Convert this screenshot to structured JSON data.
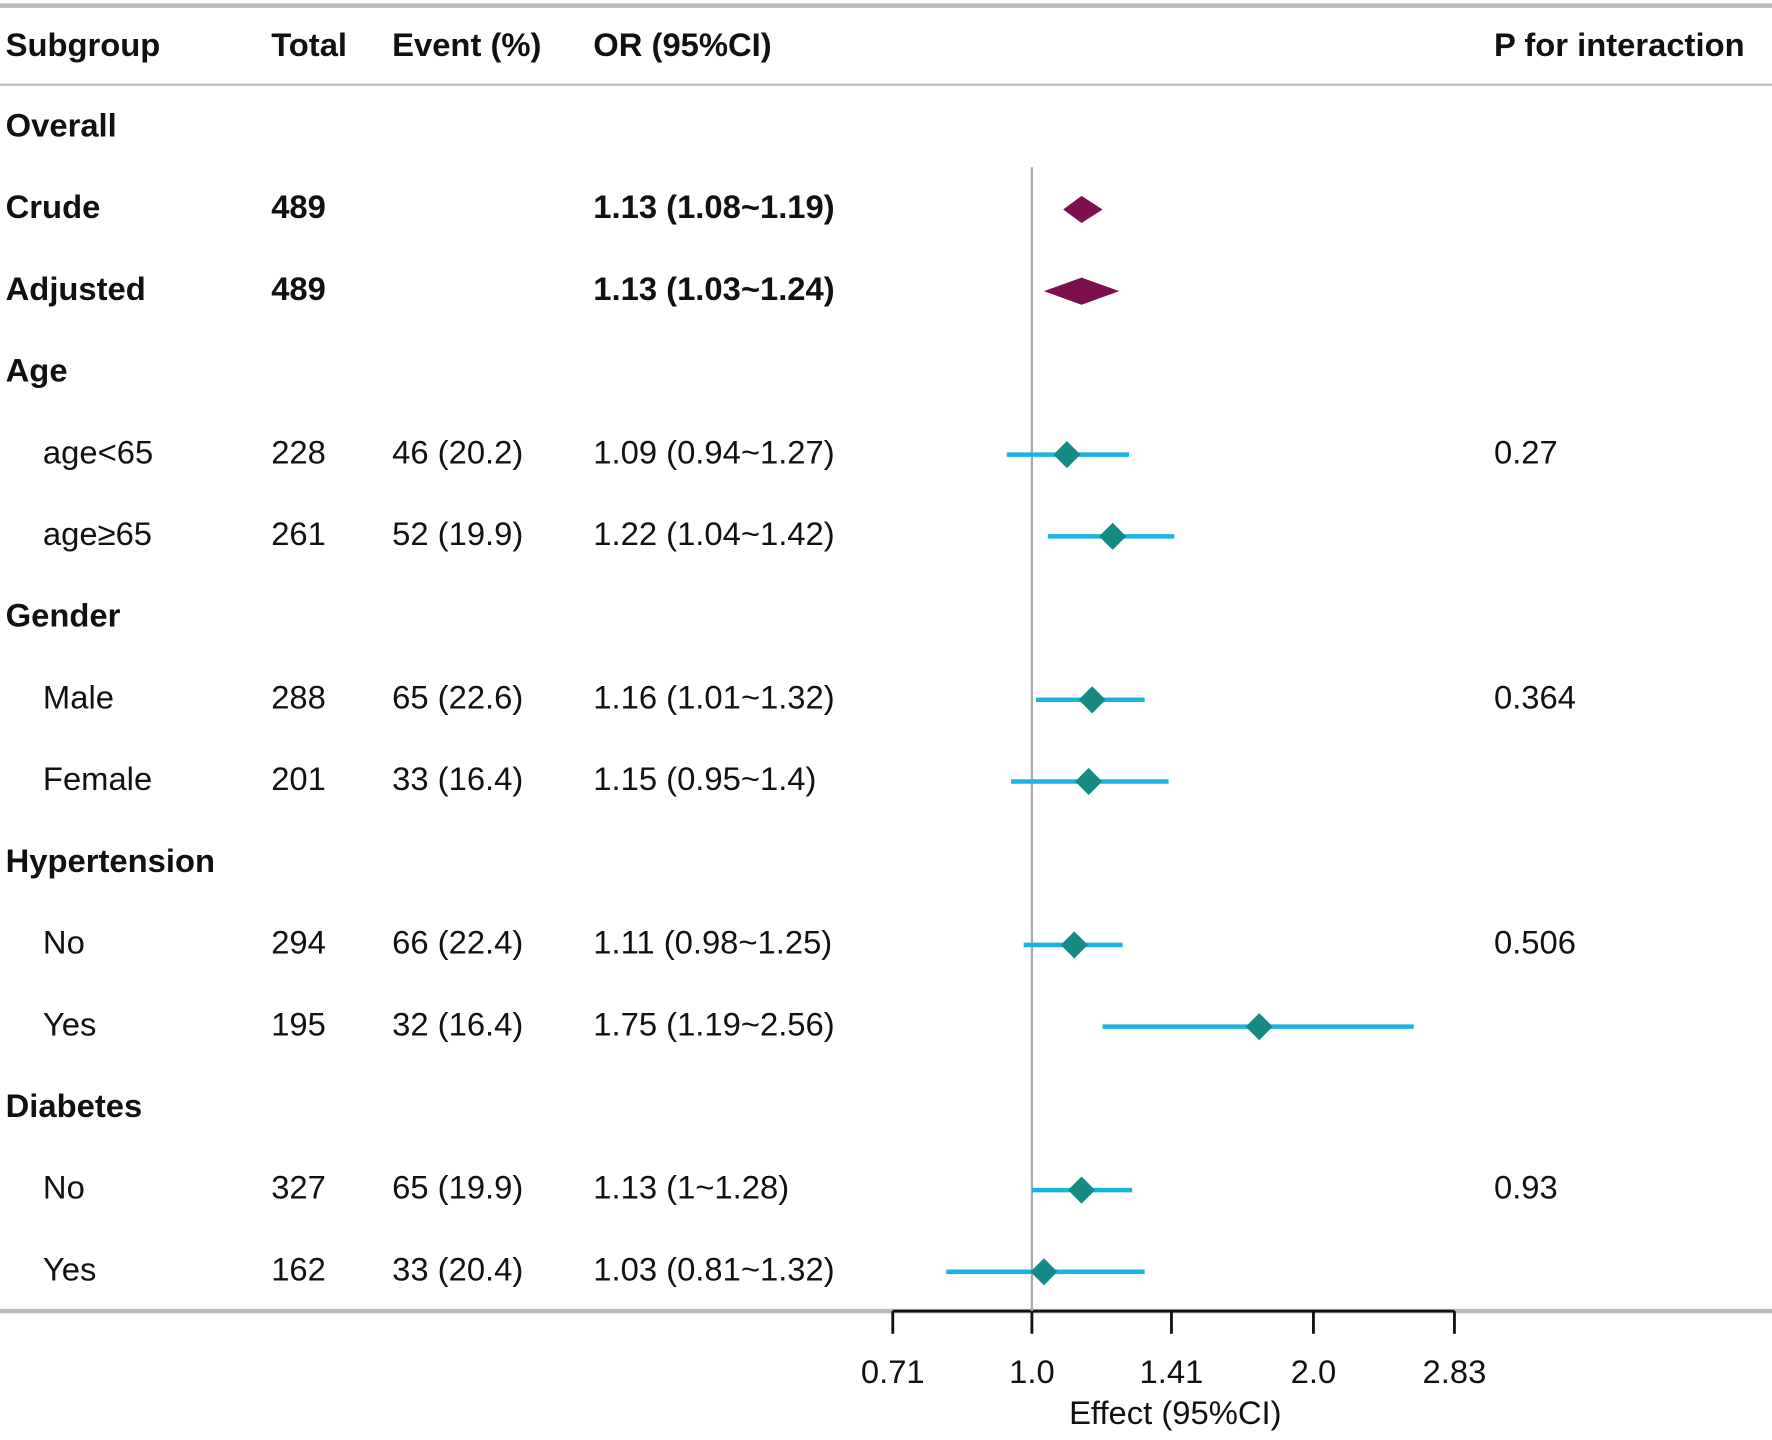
{
  "columns": [
    "Subgroup",
    "Total",
    "Event (%)",
    "OR (95%CI)",
    "P for interaction"
  ],
  "colors": {
    "overall": "#7d0f4c",
    "point": "#168a85",
    "ci": "#1ab4e3"
  },
  "chart_data": {
    "type": "forest",
    "log_scale": true,
    "xlabel": "Effect (95%CI)",
    "xlim": [
      0.71,
      2.83
    ],
    "xticks": [
      0.71,
      {
        "value": 1,
        "label": "1.0"
      },
      1.41,
      {
        "value": 2,
        "label": "2.0"
      },
      2.83
    ],
    "reference": 1,
    "rows": [
      {
        "kind": "heading",
        "subgroup": "Overall"
      },
      {
        "kind": "overall",
        "subgroup": "Crude",
        "total": 489,
        "or_label": "1.13 (1.08~1.19)",
        "or": 1.13,
        "lo": 1.08,
        "hi": 1.19
      },
      {
        "kind": "overall",
        "subgroup": "Adjusted",
        "total": 489,
        "or_label": "1.13 (1.03~1.24)",
        "or": 1.13,
        "lo": 1.03,
        "hi": 1.24
      },
      {
        "kind": "heading",
        "subgroup": "Age"
      },
      {
        "kind": "sub",
        "subgroup": "age<65",
        "total": 228,
        "event": "46 (20.2)",
        "or_label": "1.09 (0.94~1.27)",
        "or": 1.09,
        "lo": 0.94,
        "hi": 1.27,
        "p": 0.27
      },
      {
        "kind": "sub",
        "subgroup": "age≥65",
        "total": 261,
        "event": "52 (19.9)",
        "or_label": "1.22 (1.04~1.42)",
        "or": 1.22,
        "lo": 1.04,
        "hi": 1.42
      },
      {
        "kind": "heading",
        "subgroup": "Gender"
      },
      {
        "kind": "sub",
        "subgroup": "Male",
        "total": 288,
        "event": "65 (22.6)",
        "or_label": "1.16 (1.01~1.32)",
        "or": 1.16,
        "lo": 1.01,
        "hi": 1.32,
        "p": 0.364
      },
      {
        "kind": "sub",
        "subgroup": "Female",
        "total": 201,
        "event": "33 (16.4)",
        "or_label": "1.15 (0.95~1.4)",
        "or": 1.15,
        "lo": 0.95,
        "hi": 1.4
      },
      {
        "kind": "heading",
        "subgroup": "Hypertension"
      },
      {
        "kind": "sub",
        "subgroup": "No",
        "total": 294,
        "event": "66 (22.4)",
        "or_label": "1.11 (0.98~1.25)",
        "or": 1.11,
        "lo": 0.98,
        "hi": 1.25,
        "p": 0.506
      },
      {
        "kind": "sub",
        "subgroup": "Yes",
        "total": 195,
        "event": "32 (16.4)",
        "or_label": "1.75 (1.19~2.56)",
        "or": 1.75,
        "lo": 1.19,
        "hi": 2.56
      },
      {
        "kind": "heading",
        "subgroup": "Diabetes"
      },
      {
        "kind": "sub",
        "subgroup": "No",
        "total": 327,
        "event": "65 (19.9)",
        "or_label": "1.13 (1~1.28)",
        "or": 1.13,
        "lo": 1,
        "hi": 1.28,
        "p": 0.93
      },
      {
        "kind": "sub",
        "subgroup": "Yes",
        "total": 162,
        "event": "33 (20.4)",
        "or_label": "1.03 (0.81~1.32)",
        "or": 1.03,
        "lo": 0.81,
        "hi": 1.32
      }
    ]
  }
}
